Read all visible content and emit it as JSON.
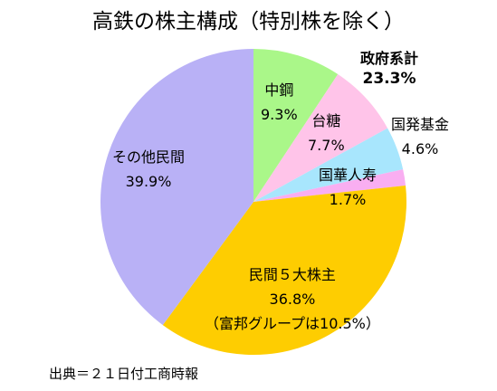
{
  "chart_data": {
    "type": "pie",
    "title": "高鉄の株主構成（特別株を除く）",
    "source": "出典＝２１日付工商時報",
    "group": {
      "name": "政府系計",
      "value_label": "23.3%",
      "value": 23.3
    },
    "slices": [
      {
        "name": "中鋼",
        "value": 9.3,
        "value_label": "9.3%",
        "color": "#aaf789"
      },
      {
        "name": "台糖",
        "value": 7.7,
        "value_label": "7.7%",
        "color": "#ffc4e9"
      },
      {
        "name": "国発基金",
        "value": 4.6,
        "value_label": "4.6%",
        "color": "#a8e6fd"
      },
      {
        "name": "国華人寿",
        "value": 1.7,
        "value_label": "1.7%",
        "color": "#f9aef1"
      },
      {
        "name": "民間５大株主",
        "value": 36.8,
        "value_label": "36.8%",
        "note": "（富邦グループは10.5%）",
        "color": "#fecd01"
      },
      {
        "name": "その他民間",
        "value": 39.9,
        "value_label": "39.9%",
        "color": "#b9b1f6"
      }
    ]
  }
}
